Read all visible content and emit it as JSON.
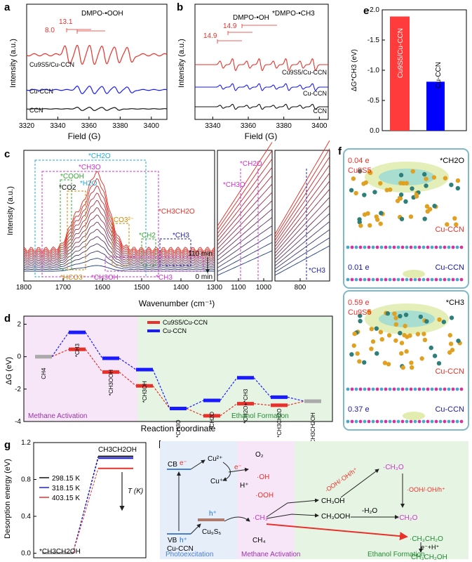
{
  "panel_labels": {
    "a": "a",
    "b": "b",
    "c": "c",
    "d": "d",
    "e": "e",
    "f": "f",
    "g": "g",
    "h": "h"
  },
  "colors": {
    "cu9s5": "#e8312a",
    "cucn": "#1a1aff",
    "ccn": "#111111",
    "purple": "#cc33cc",
    "green": "#33aa33",
    "orange": "#cc8800",
    "cyan": "#22aadd",
    "teal": "#2e9e8f"
  },
  "chart_data": [
    {
      "id": "a",
      "type": "line",
      "xlabel": "Field (G)",
      "ylabel": "Intensity (a.u.)",
      "xlim": [
        3320,
        3410
      ],
      "xticks": [
        3320,
        3340,
        3360,
        3380,
        3400
      ],
      "series": [
        {
          "name": "Cu9S5/Cu-CCN",
          "color": "#e8312a",
          "lines": [
            3346,
            3354,
            3362,
            3370,
            3378,
            3386
          ]
        },
        {
          "name": "Cu-CCN",
          "color": "#1a1aff",
          "lines": [
            3354,
            3362,
            3370,
            3378,
            3386
          ]
        },
        {
          "name": "CCN",
          "color": "#111111",
          "lines": [
            3354,
            3362,
            3370,
            3378
          ]
        }
      ],
      "annotations": [
        "8.0",
        "13.1",
        "DMPO-•OOH"
      ]
    },
    {
      "id": "b",
      "type": "line",
      "xlabel": "Field (G)",
      "ylabel": "Intensity (a.u.)",
      "xlim": [
        3330,
        3405
      ],
      "xticks": [
        3340,
        3360,
        3380,
        3400
      ],
      "series": [
        {
          "name": "Cu9S5/Cu-CCN",
          "color": "#e8312a"
        },
        {
          "name": "Cu-CCN",
          "color": "#1a1aff"
        },
        {
          "name": "CCN",
          "color": "#111111"
        }
      ],
      "annotations": [
        "14.9",
        "14.9",
        "DMPO-•OH",
        "*DMPO-•CH3"
      ]
    },
    {
      "id": "e",
      "type": "bar",
      "ylabel": "ΔG*CH3 (eV)",
      "ylim": [
        0,
        -2.0
      ],
      "yticks": [
        "-2.0",
        "-1.5",
        "-1.0",
        "-0.5",
        "0.0"
      ],
      "categories": [
        "Cu9S5/Cu-CCN",
        "Cu-CCN"
      ],
      "values": [
        -1.89,
        -0.81
      ],
      "colors": [
        "#ff3b3b",
        "#0000ff"
      ]
    },
    {
      "id": "c",
      "type": "line",
      "xlabel": "Wavenumber (cm⁻¹)",
      "ylabel": "Intensity (a.u.)",
      "xticks": [
        "1800",
        "1700",
        "1600",
        "1500",
        "1400",
        "1300",
        "1100",
        "1000",
        "800"
      ],
      "time_labels": [
        "110 min",
        "0 min"
      ],
      "annotations": [
        "*CH2O",
        "*CH3O",
        "*COOH",
        "*CO2",
        "*H2O",
        "*CO3²⁻",
        "*CH3CH2O",
        "*CH2",
        "*CH3",
        "*HCO3⁻",
        "*CH3OH",
        "*CH3",
        "*CH3O",
        "*CH2O",
        "*CH3"
      ]
    },
    {
      "id": "d",
      "type": "line",
      "xlabel": "Reaction coordinate",
      "ylabel": "ΔG (eV)",
      "ylim": [
        -4,
        2.5
      ],
      "yticks": [
        "2",
        "0",
        "-2",
        "-4"
      ],
      "categories": [
        "CH4",
        "*CH3",
        "*CH3OOH",
        "*CH3OH",
        "*CH3O",
        "*CH2O",
        "*CH2O+*CH3",
        "*CH3CH2O",
        "CH3CH2OH"
      ],
      "series": [
        {
          "name": "Cu9S5/Cu-CCN",
          "color": "#e8312a",
          "values": [
            0,
            0.45,
            -0.95,
            -1.8,
            -3.2,
            -3.65,
            -2.9,
            -3.0,
            -2.75
          ]
        },
        {
          "name": "Cu-CCN",
          "color": "#1a1aff",
          "values": [
            0,
            1.5,
            -0.1,
            -0.8,
            -3.2,
            -2.7,
            -1.3,
            -2.5,
            -2.75
          ]
        }
      ],
      "regions": [
        "Methane Activation",
        "Ethanol Formation"
      ]
    },
    {
      "id": "g",
      "type": "line",
      "ylabel": "Desorption energy (eV)",
      "ylim": [
        -0.05,
        1.2
      ],
      "yticks": [
        "0.0",
        "0.4",
        "0.8",
        "1.2"
      ],
      "categories": [
        "*CH3CH2OH",
        "CH3CH2OH"
      ],
      "series": [
        {
          "name": "298.15 K",
          "color": "#111111",
          "values": [
            0,
            1.05
          ]
        },
        {
          "name": "318.15 K",
          "color": "#1a1aff",
          "values": [
            0,
            1.03
          ]
        },
        {
          "name": "403.15 K",
          "color": "#e8312a",
          "values": [
            0,
            0.92
          ]
        }
      ],
      "arrow_label": "T (K)"
    }
  ],
  "panel_f": {
    "top": {
      "charge_top": "0.04 e",
      "cu9s5": "Cu9S5",
      "species": "*CH2O",
      "cucn_mid": "Cu-CCN",
      "charge_bot": "0.01 e",
      "cucn_bot": "Cu-CCN"
    },
    "bottom": {
      "charge_top": "0.59 e",
      "cu9s5": "Cu9S5",
      "species": "*CH3",
      "cucn_mid": "Cu-CCN",
      "charge_bot": "0.37 e",
      "cucn_bot": "Cu-CCN"
    }
  },
  "panel_h": {
    "cb": "CB",
    "vb": "VB",
    "e1": "e⁻",
    "h1": "h⁺",
    "cu2": "Cu²⁺",
    "cu1": "Cu⁺",
    "e2": "e⁻",
    "hplus": "H⁺",
    "o2": "O₂",
    "oh": "·OH",
    "ooh": "·OOH",
    "cucn": "Cu-CCN",
    "cu9s5": "Cu₉S₅",
    "h2": "h⁺",
    "ch3": "·CH₃",
    "ch4": "CH₄",
    "ch3oh": "CH₃OH",
    "ch3ooh": "CH₃OOH",
    "minus_h2o": "-H₂O",
    "ch3o": "·CH₃O",
    "ch2o": "·CH₂O",
    "ch3ch2o": "·CH₃CH₂O",
    "eh": "e⁻+H⁺",
    "etoh": "CH₃CH₂OH",
    "oxidants1": "·OOH/·OH/h⁺",
    "oxidants2": "·OOH/·OH/h⁺",
    "sec1": "Photoexcitation",
    "sec2": "Methane Activation",
    "sec3": "Ethanol Formation"
  }
}
